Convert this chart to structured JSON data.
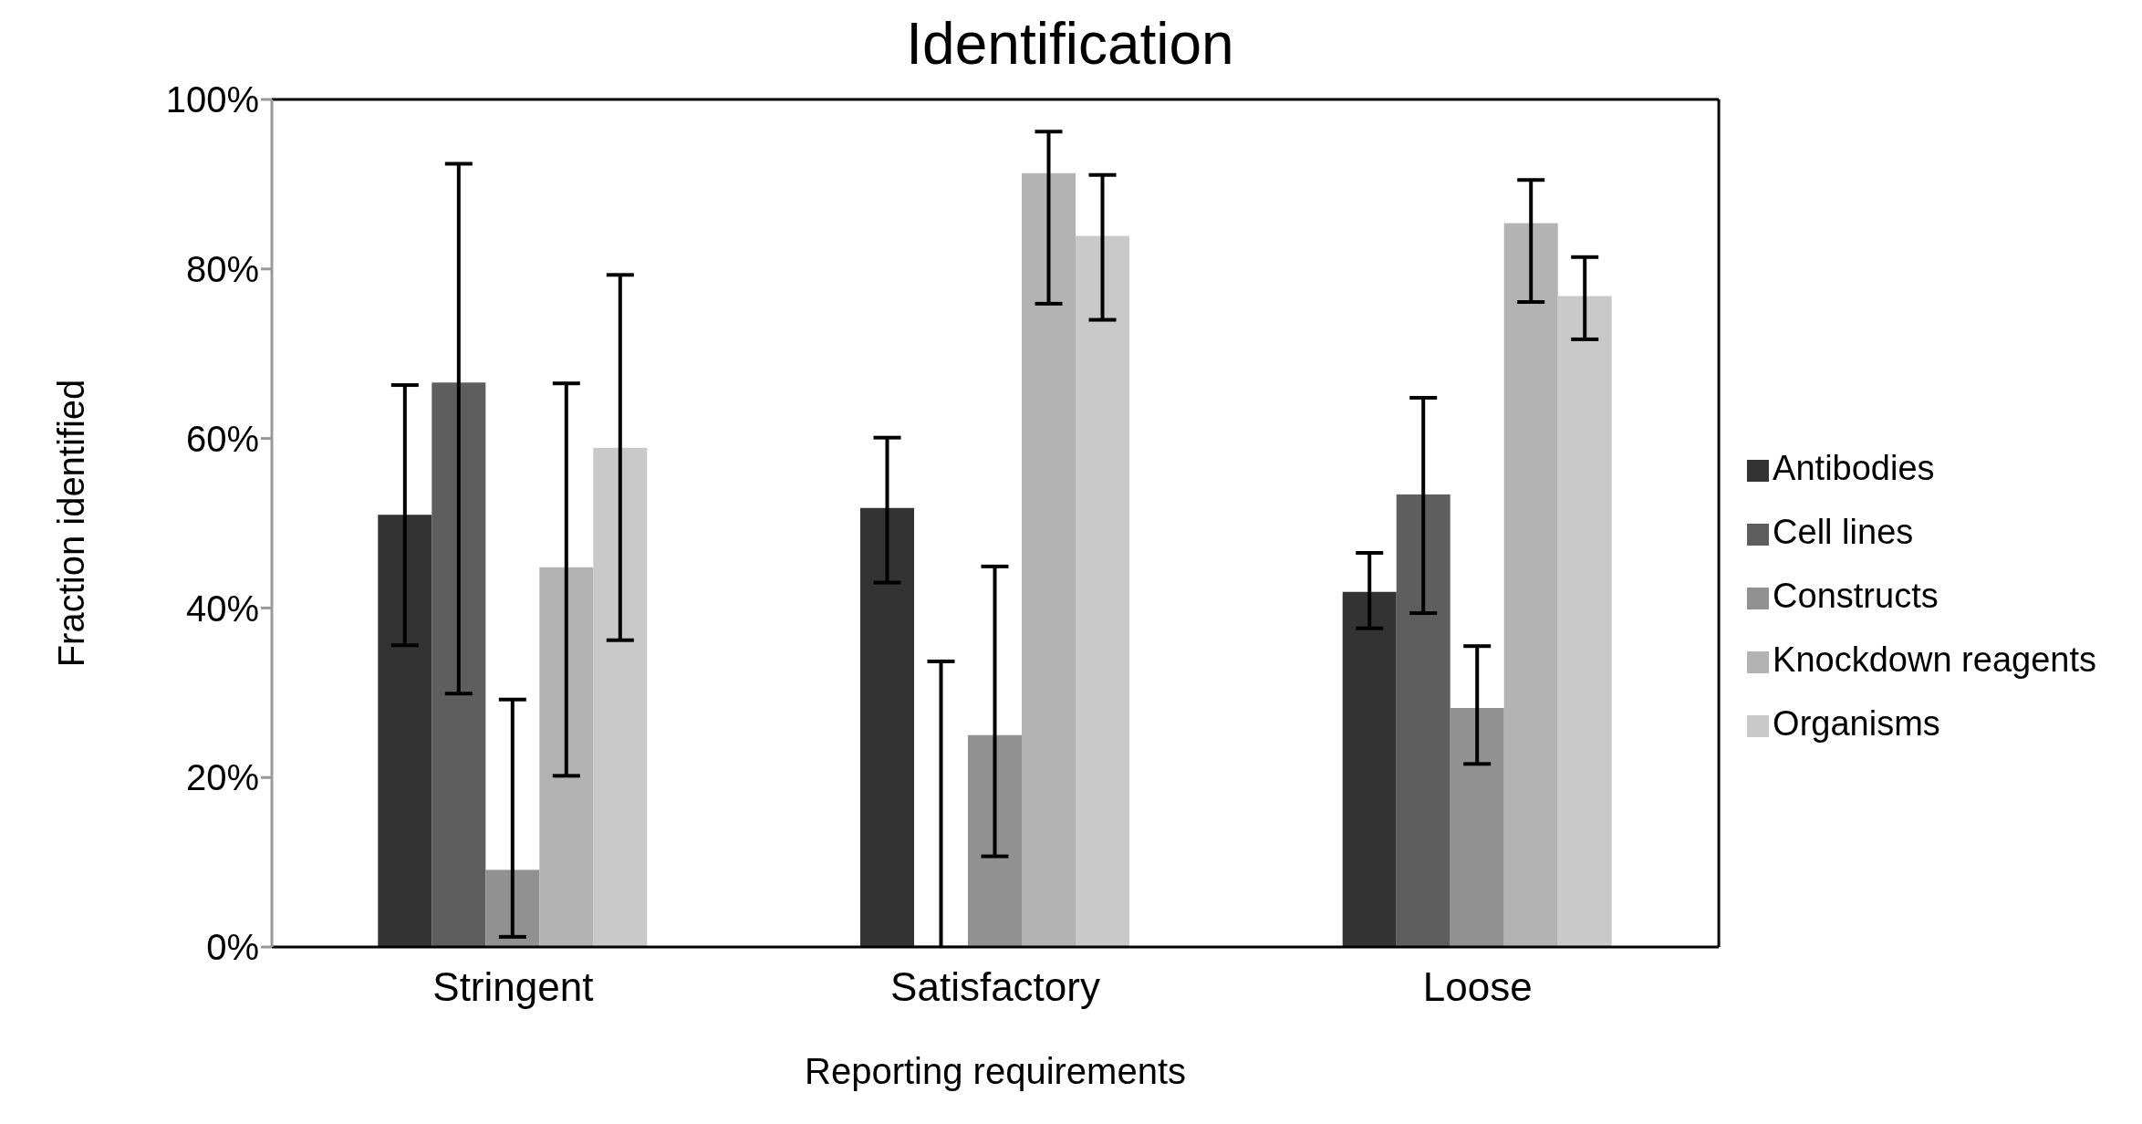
{
  "chart_data": {
    "type": "bar",
    "title": "Identification",
    "xlabel": "Reporting requirements",
    "ylabel": "Fraction identified",
    "categories": [
      "Stringent",
      "Satisfactory",
      "Loose"
    ],
    "series": [
      {
        "name": "Antibodies",
        "color": "#333333",
        "values": [
          51.0,
          51.8,
          41.9
        ],
        "errors": [
          [
            35.6,
            66.3
          ],
          [
            43.0,
            60.1
          ],
          [
            37.6,
            46.5
          ]
        ]
      },
      {
        "name": "Cell lines",
        "color": "#5e5e5e",
        "values": [
          66.6,
          0,
          53.4
        ],
        "errors": [
          [
            29.9,
            92.4
          ],
          [
            0,
            33.7
          ],
          [
            39.4,
            64.8
          ]
        ]
      },
      {
        "name": "Constructs",
        "color": "#919191",
        "values": [
          9.1,
          25.0,
          28.2
        ],
        "errors": [
          [
            1.2,
            29.2
          ],
          [
            10.7,
            44.9
          ],
          [
            21.6,
            35.5
          ]
        ]
      },
      {
        "name": "Knockdown reagents",
        "color": "#b3b3b3",
        "values": [
          44.8,
          91.3,
          85.4
        ],
        "errors": [
          [
            20.2,
            66.5
          ],
          [
            75.9,
            96.2
          ],
          [
            76.1,
            90.5
          ]
        ]
      },
      {
        "name": "Organisms",
        "color": "#c9c9c9",
        "values": [
          58.9,
          83.9,
          76.8
        ],
        "errors": [
          [
            36.2,
            79.3
          ],
          [
            74.0,
            91.1
          ],
          [
            71.7,
            81.4
          ]
        ]
      }
    ],
    "ylim": [
      0,
      100
    ],
    "yticks": [
      {
        "value": 0,
        "label": "0%"
      },
      {
        "value": 20,
        "label": "20%"
      },
      {
        "value": 40,
        "label": "40%"
      },
      {
        "value": 60,
        "label": "60%"
      },
      {
        "value": 80,
        "label": "80%"
      },
      {
        "value": 100,
        "label": "100%"
      }
    ],
    "grid": false,
    "legend": "right"
  }
}
